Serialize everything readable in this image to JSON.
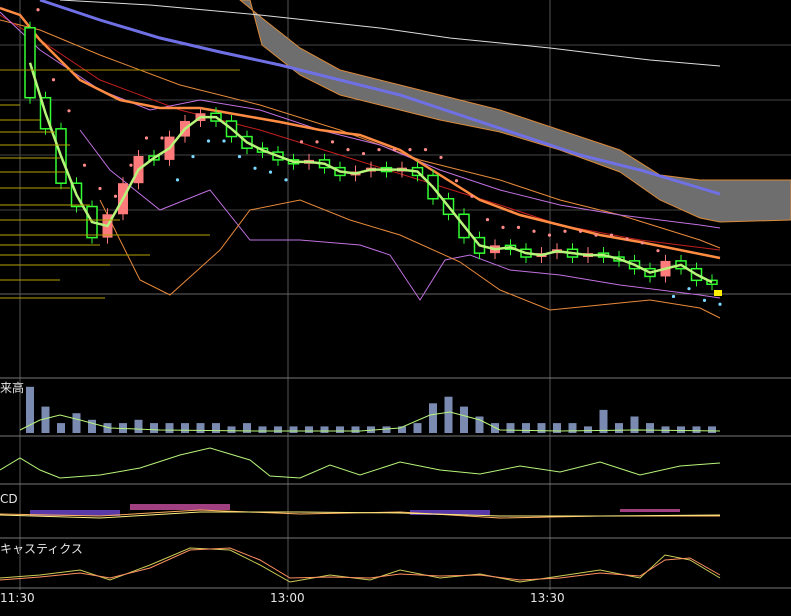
{
  "panels": {
    "volume_label": "来高",
    "macd_label": "CD",
    "stochastics_label": "キャスティクス"
  },
  "chart_data": {
    "type": "line",
    "subtype": "candlestick-with-indicators",
    "x_ticks": [
      "11:30",
      "13:00",
      "13:30"
    ],
    "legend": "none",
    "grid": true,
    "colors": {
      "background": "#000000",
      "bull_candle": "#ff7b7b",
      "bear_candle": "#33ff33",
      "ma_short": "#b7f57a",
      "ma_mid": "#ff8c42",
      "ma_long": "#7070e6",
      "ichimoku_cloud": "#6e6e6e",
      "parabolic_sar_upper": "#ff8a8a",
      "parabolic_sar_lower": "#7ad7ff",
      "bollinger": "#c070e0",
      "volume_bar": "#7a8ab0",
      "macd_hist_pos": "#a04080",
      "macd_hist_neg": "#5a3aa8",
      "stochastic_k": "#cccc55",
      "stochastic_d": "#ff9060",
      "last_price_marker": "#ffee00"
    },
    "price_series": [
      {
        "o": 88,
        "c": 70
      },
      {
        "o": 70,
        "c": 62
      },
      {
        "o": 62,
        "c": 48
      },
      {
        "o": 48,
        "c": 42
      },
      {
        "o": 42,
        "c": 34
      },
      {
        "o": 34,
        "c": 40
      },
      {
        "o": 40,
        "c": 48
      },
      {
        "o": 48,
        "c": 55
      },
      {
        "o": 55,
        "c": 54
      },
      {
        "o": 54,
        "c": 60
      },
      {
        "o": 60,
        "c": 64
      },
      {
        "o": 64,
        "c": 66
      },
      {
        "o": 66,
        "c": 64
      },
      {
        "o": 64,
        "c": 60
      },
      {
        "o": 60,
        "c": 57
      },
      {
        "o": 57,
        "c": 56
      },
      {
        "o": 56,
        "c": 54
      },
      {
        "o": 54,
        "c": 53
      },
      {
        "o": 53,
        "c": 54
      },
      {
        "o": 54,
        "c": 52
      },
      {
        "o": 52,
        "c": 50
      },
      {
        "o": 50,
        "c": 51
      },
      {
        "o": 51,
        "c": 52
      },
      {
        "o": 52,
        "c": 51
      },
      {
        "o": 51,
        "c": 52
      },
      {
        "o": 52,
        "c": 50
      },
      {
        "o": 50,
        "c": 44
      },
      {
        "o": 44,
        "c": 40
      },
      {
        "o": 40,
        "c": 34
      },
      {
        "o": 34,
        "c": 30
      },
      {
        "o": 30,
        "c": 32
      },
      {
        "o": 32,
        "c": 31
      },
      {
        "o": 31,
        "c": 29
      },
      {
        "o": 29,
        "c": 30
      },
      {
        "o": 30,
        "c": 31
      },
      {
        "o": 31,
        "c": 29
      },
      {
        "o": 29,
        "c": 30
      },
      {
        "o": 30,
        "c": 29
      },
      {
        "o": 29,
        "c": 28
      },
      {
        "o": 28,
        "c": 26
      },
      {
        "o": 26,
        "c": 24
      },
      {
        "o": 24,
        "c": 28
      },
      {
        "o": 28,
        "c": 26
      },
      {
        "o": 26,
        "c": 23
      },
      {
        "o": 23,
        "c": 22
      }
    ],
    "volume": [
      14,
      8,
      3,
      6,
      4,
      3,
      3,
      4,
      3,
      3,
      3,
      3,
      3,
      2,
      3,
      2,
      2,
      2,
      2,
      2,
      2,
      2,
      2,
      2,
      2,
      3,
      9,
      11,
      8,
      5,
      3,
      3,
      3,
      3,
      3,
      3,
      2,
      7,
      3,
      5,
      3,
      2,
      2,
      2,
      2
    ]
  }
}
